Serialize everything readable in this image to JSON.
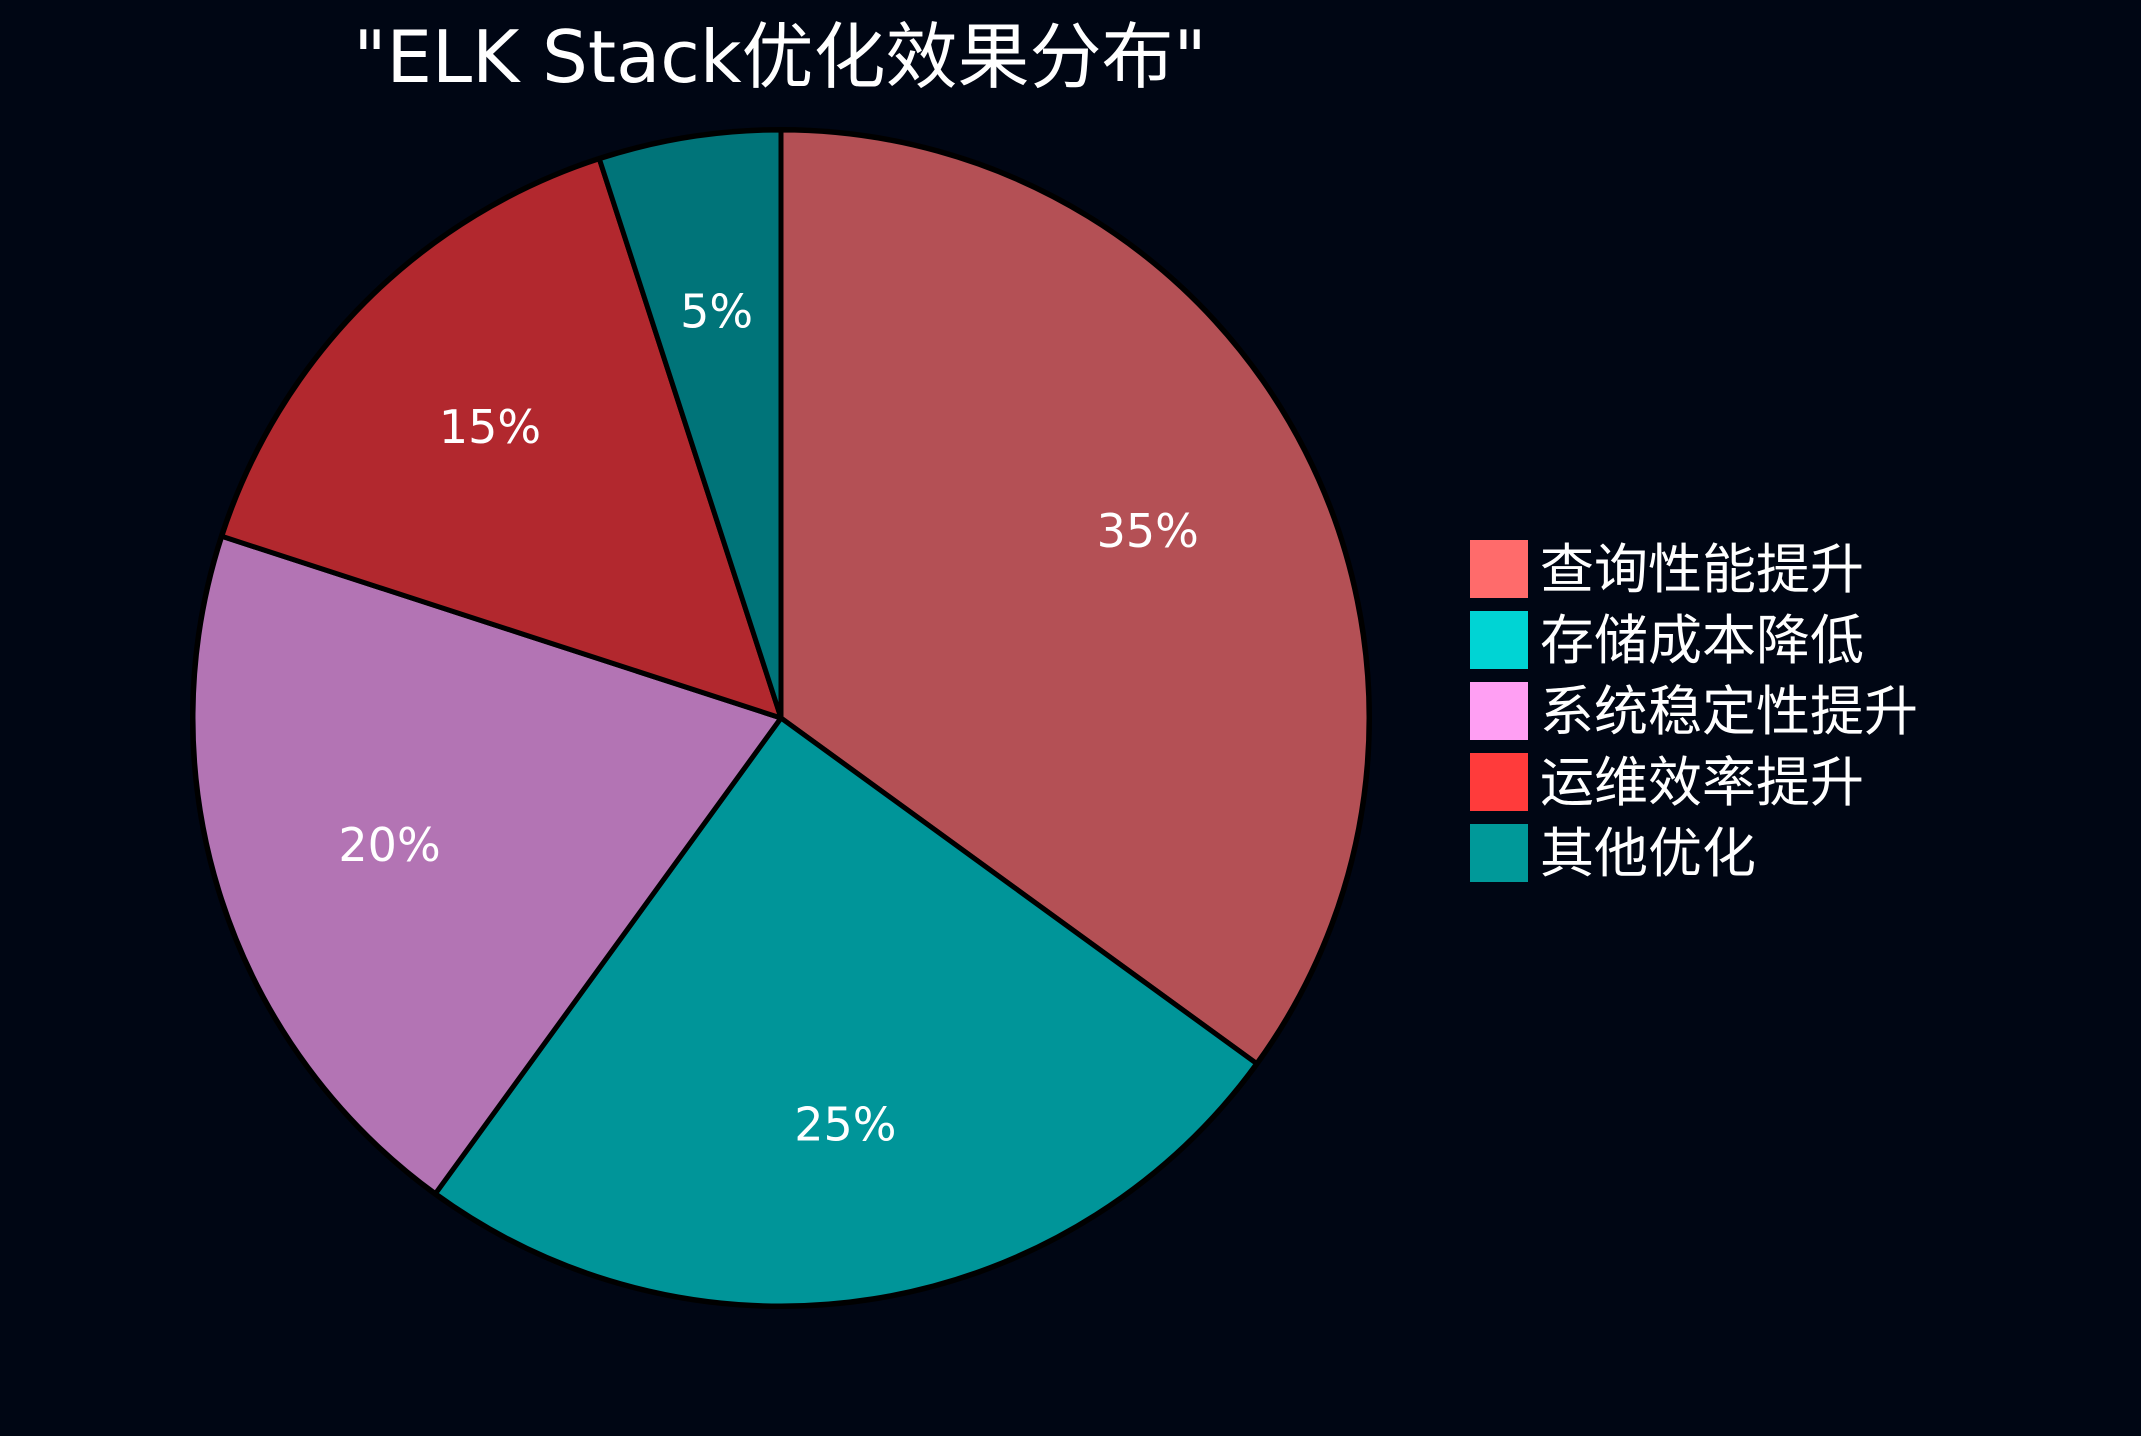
{
  "chart_data": {
    "type": "pie",
    "title": "\"ELK Stack优化效果分布\"",
    "categories": [
      "查询性能提升",
      "存储成本降低",
      "系统稳定性提升",
      "运维效率提升",
      "其他优化"
    ],
    "values": [
      35,
      25,
      20,
      15,
      5
    ],
    "value_labels": [
      "35%",
      "25%",
      "20%",
      "15%",
      "5%"
    ],
    "legend_colors": [
      "#ff6b6b",
      "#00d4d4",
      "#ff9ff3",
      "#ff3b3b",
      "#009999"
    ],
    "slice_colors": [
      "#b45055",
      "#009599",
      "#b374b4",
      "#b2282e",
      "#007479"
    ],
    "start_angle": "12 o'clock",
    "direction": "clockwise",
    "legend_position": "right"
  }
}
